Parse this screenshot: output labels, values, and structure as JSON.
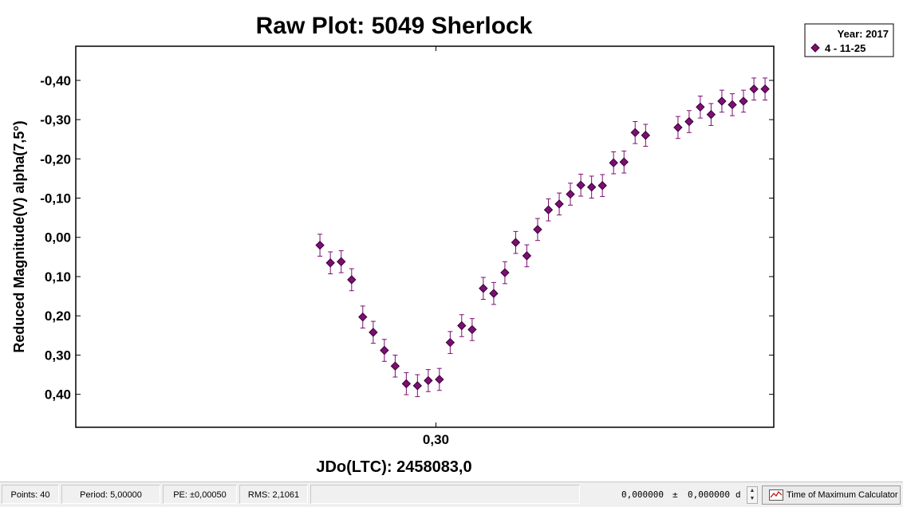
{
  "chart_data": {
    "type": "scatter",
    "title": "Raw Plot: 5049 Sherlock",
    "xlabel": "JDo(LTC): 2458083,0",
    "ylabel": "Reduced Magnitude(V) alpha(7,5°)",
    "xlim": [
      0.1966,
      0.397
    ],
    "ylim": [
      0.484,
      -0.487
    ],
    "y_inverted": true,
    "x_ticks": [
      "0,30"
    ],
    "y_ticks": [
      "-0,40",
      "-0,30",
      "-0,20",
      "-0,10",
      "0,00",
      "0,10",
      "0,20",
      "0,30",
      "0,40"
    ],
    "grid": false,
    "legend": {
      "title": "Year: 2017",
      "entries": [
        "4 - 11-25"
      ],
      "placement": "top-right"
    },
    "series": [
      {
        "name": "4 - 11-25",
        "color": "#7b0f73",
        "marker": "diamond",
        "error": 0.028,
        "x": [
          0.2667,
          0.2697,
          0.2728,
          0.2758,
          0.279,
          0.282,
          0.2852,
          0.2883,
          0.2915,
          0.2947,
          0.2978,
          0.301,
          0.3041,
          0.3074,
          0.3104,
          0.3136,
          0.3166,
          0.3198,
          0.3229,
          0.3261,
          0.3292,
          0.3323,
          0.3354,
          0.3386,
          0.3416,
          0.3447,
          0.3478,
          0.351,
          0.354,
          0.3572,
          0.3602,
          0.3695,
          0.3727,
          0.3759,
          0.379,
          0.3821,
          0.3851,
          0.3883,
          0.3913,
          0.3945
        ],
        "y": [
          0.02,
          0.065,
          0.062,
          0.108,
          0.203,
          0.242,
          0.288,
          0.328,
          0.373,
          0.378,
          0.365,
          0.362,
          0.268,
          0.225,
          0.235,
          0.13,
          0.143,
          0.09,
          0.013,
          0.047,
          -0.02,
          -0.07,
          -0.085,
          -0.11,
          -0.133,
          -0.128,
          -0.132,
          -0.19,
          -0.192,
          -0.267,
          -0.26,
          -0.28,
          -0.295,
          -0.332,
          -0.313,
          -0.347,
          -0.338,
          -0.347,
          -0.378,
          -0.378
        ]
      }
    ]
  },
  "status": {
    "points": "Points: 40",
    "period": "Period: 5,00000",
    "pe": "PE: ±0,00050",
    "rms": "RMS: 2,1061",
    "readout_a": "0,000000",
    "plus_minus": "±",
    "readout_b": "0,000000",
    "unit": "d",
    "calc_button": "Time of Maximum Calculator"
  }
}
